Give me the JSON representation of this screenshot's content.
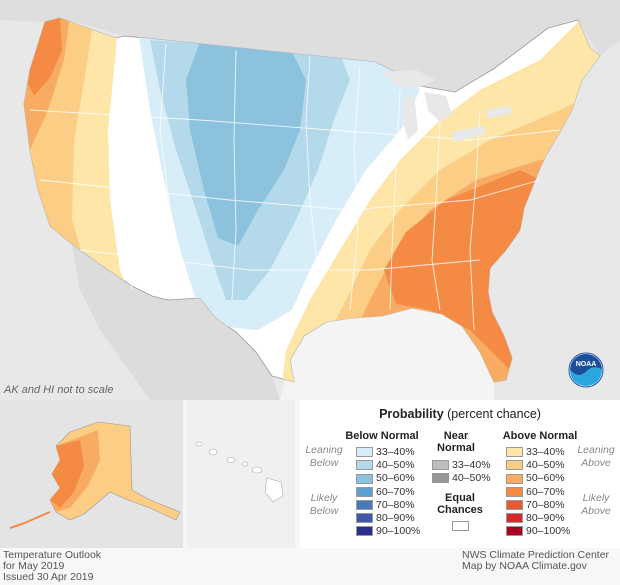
{
  "map_note": "AK and HI not to scale",
  "legend": {
    "title_bold": "Probability",
    "title_rest": " (percent chance)",
    "below_header": "Below Normal",
    "near_header": "Near Normal",
    "above_header": "Above Normal",
    "leaning_below": "Leaning Below",
    "likely_below": "Likely Below",
    "leaning_above": "Leaning Above",
    "likely_above": "Likely Above",
    "equal_chances": "Equal Chances",
    "below": [
      {
        "label": "33–40%",
        "color": "#d7eef8"
      },
      {
        "label": "40–50%",
        "color": "#b4d9ea"
      },
      {
        "label": "50–60%",
        "color": "#8cc2de"
      },
      {
        "label": "60–70%",
        "color": "#5e9fd0"
      },
      {
        "label": "70–80%",
        "color": "#4a78bc"
      },
      {
        "label": "80–90%",
        "color": "#3e58a8"
      },
      {
        "label": "90–100%",
        "color": "#2a2f8c"
      }
    ],
    "near": [
      {
        "label": "33–40%",
        "color": "#bdbdbd"
      },
      {
        "label": "40–50%",
        "color": "#969696"
      }
    ],
    "above": [
      {
        "label": "33–40%",
        "color": "#fde6a8"
      },
      {
        "label": "40–50%",
        "color": "#fbcd85"
      },
      {
        "label": "50–60%",
        "color": "#f8ab62"
      },
      {
        "label": "60–70%",
        "color": "#f58a44"
      },
      {
        "label": "70–80%",
        "color": "#e65a32"
      },
      {
        "label": "80–90%",
        "color": "#d2282a"
      },
      {
        "label": "90–100%",
        "color": "#a8001e"
      }
    ]
  },
  "footer_left": [
    "Temperature Outlook",
    "for May 2019",
    "Issued 30 Apr 2019"
  ],
  "footer_right": [
    "NWS Climate Prediction Center",
    "Map by NOAA Climate.gov"
  ],
  "logo_text": "NOAA"
}
